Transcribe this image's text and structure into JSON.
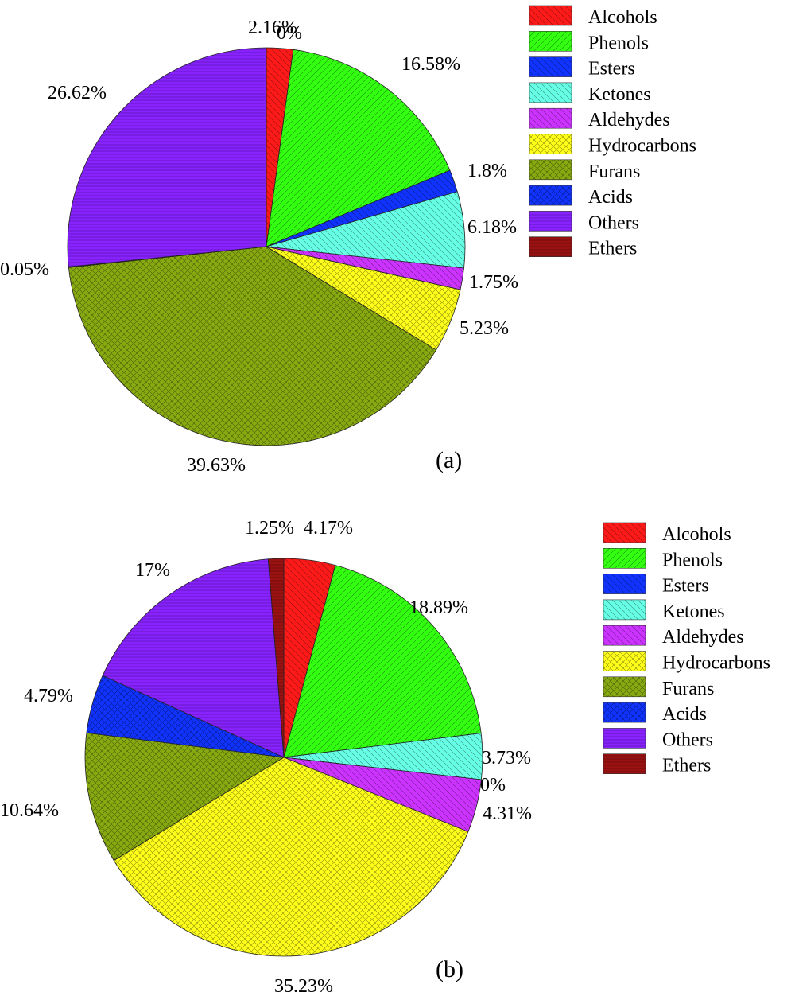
{
  "chart_data": [
    {
      "type": "pie",
      "panel_label": "(a)",
      "legend_position": "right",
      "slices": [
        {
          "name": "Alcohols",
          "value": 2.16,
          "label": "2.16%"
        },
        {
          "name": "Phenols",
          "value": 16.58,
          "label": "16.58%"
        },
        {
          "name": "Esters",
          "value": 1.8,
          "label": "1.8%"
        },
        {
          "name": "Ketones",
          "value": 6.18,
          "label": "6.18%"
        },
        {
          "name": "Aldehydes",
          "value": 1.75,
          "label": "1.75%"
        },
        {
          "name": "Hydrocarbons",
          "value": 5.23,
          "label": "5.23%"
        },
        {
          "name": "Furans",
          "value": 39.63,
          "label": "39.63%"
        },
        {
          "name": "Acids",
          "value": 0.05,
          "label": "0.05%"
        },
        {
          "name": "Others",
          "value": 26.62,
          "label": "26.62%"
        },
        {
          "name": "Ethers",
          "value": 0,
          "label": "0%"
        }
      ]
    },
    {
      "type": "pie",
      "panel_label": "(b)",
      "legend_position": "right",
      "slices": [
        {
          "name": "Alcohols",
          "value": 4.17,
          "label": "4.17%"
        },
        {
          "name": "Phenols",
          "value": 18.89,
          "label": "18.89%"
        },
        {
          "name": "Esters",
          "value": 0,
          "label": "0%"
        },
        {
          "name": "Ketones",
          "value": 3.73,
          "label": "3.73%"
        },
        {
          "name": "Aldehydes",
          "value": 4.31,
          "label": "4.31%"
        },
        {
          "name": "Hydrocarbons",
          "value": 35.23,
          "label": "35.23%"
        },
        {
          "name": "Furans",
          "value": 10.64,
          "label": "10.64%"
        },
        {
          "name": "Acids",
          "value": 4.79,
          "label": "4.79%"
        },
        {
          "name": "Others",
          "value": 17,
          "label": "17%"
        },
        {
          "name": "Ethers",
          "value": 1.25,
          "label": "1.25%"
        }
      ]
    }
  ],
  "legend": [
    {
      "name": "Alcohols",
      "color": "#ff1a1a",
      "pattern": "diag-back"
    },
    {
      "name": "Phenols",
      "color": "#33ff11",
      "pattern": "diag-fwd"
    },
    {
      "name": "Esters",
      "color": "#1133ff",
      "pattern": "diag-back"
    },
    {
      "name": "Ketones",
      "color": "#66ffe6",
      "pattern": "diag-back"
    },
    {
      "name": "Aldehydes",
      "color": "#cc33ff",
      "pattern": "diag-back"
    },
    {
      "name": "Hydrocarbons",
      "color": "#ffff1a",
      "pattern": "cross"
    },
    {
      "name": "Furans",
      "color": "#88aa11",
      "pattern": "cross"
    },
    {
      "name": "Acids",
      "color": "#1133ff",
      "pattern": "cross"
    },
    {
      "name": "Others",
      "color": "#8822ff",
      "pattern": "horiz"
    },
    {
      "name": "Ethers",
      "color": "#991111",
      "pattern": "horiz"
    }
  ]
}
